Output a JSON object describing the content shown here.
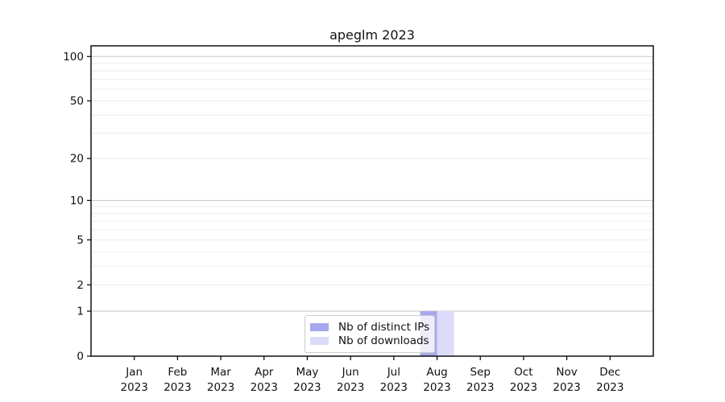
{
  "chart_data": {
    "type": "bar",
    "title": "apeglm 2023",
    "categories": [
      "Jan 2023",
      "Feb 2023",
      "Mar 2023",
      "Apr 2023",
      "May 2023",
      "Jun 2023",
      "Jul 2023",
      "Aug 2023",
      "Sep 2023",
      "Oct 2023",
      "Nov 2023",
      "Dec 2023"
    ],
    "series": [
      {
        "name": "Nb of distinct IPs",
        "color": "#a8a8ec",
        "values": [
          0,
          0,
          0,
          0,
          0,
          0,
          0,
          1,
          0,
          0,
          0,
          0
        ]
      },
      {
        "name": "Nb of downloads",
        "color": "#dcdcfa",
        "values": [
          0,
          0,
          0,
          0,
          0,
          0,
          0,
          1,
          0,
          0,
          0,
          0
        ]
      }
    ],
    "yscale": "log1p",
    "yticks": [
      0,
      1,
      2,
      5,
      10,
      20,
      50,
      100
    ],
    "ylim": [
      0,
      118
    ],
    "grid_major_values": [
      1,
      10,
      100
    ],
    "grid_minor_values": [
      2,
      3,
      4,
      5,
      6,
      7,
      8,
      9,
      20,
      30,
      40,
      50,
      60,
      70,
      80,
      90
    ],
    "legend_position": "lower center",
    "colors": {
      "grid_major": "#c6c6c6",
      "grid_minor": "#ececec",
      "spine": "#000000",
      "tick_label": "#111111"
    }
  }
}
